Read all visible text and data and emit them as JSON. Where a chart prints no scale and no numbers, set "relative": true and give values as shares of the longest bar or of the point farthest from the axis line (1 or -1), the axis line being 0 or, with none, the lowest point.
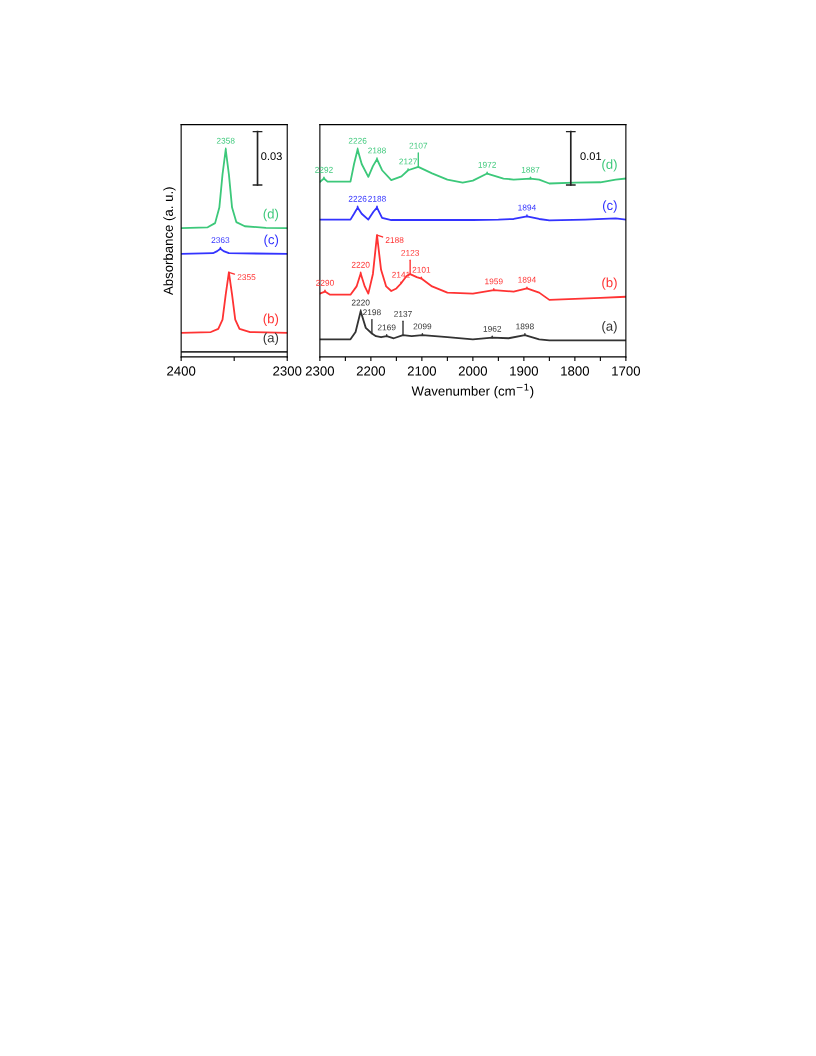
{
  "chart_data": [
    {
      "type": "line",
      "relative": true,
      "ylabel": "Absorbance (a. u.)",
      "xlim": [
        2400,
        2300
      ],
      "xticks": [
        2400,
        {
          "value": 2350,
          "label": null
        },
        2300
      ],
      "legend": false,
      "grid": false,
      "marker": "none",
      "line_style": "solid",
      "annotations": [
        {
          "text": "2358",
          "x": 2358,
          "y": 1.0
        },
        {
          "text": "2363",
          "x": 2363,
          "y": 0.521
        },
        {
          "text": "2355",
          "x": 2355,
          "y": 0.408
        },
        "0.03"
      ],
      "series": [
        {
          "name": "(a)",
          "color": "#333333",
          "x": [
            2400,
            2300
          ],
          "values": [
            0.024,
            0.024
          ]
        },
        {
          "name": "(b)",
          "color": "#ff3333",
          "x": [
            2400,
            2372,
            2365,
            2361,
            2358,
            2355,
            2352,
            2349,
            2345,
            2335,
            2300
          ],
          "values": [
            0.116,
            0.12,
            0.135,
            0.18,
            0.3,
            0.408,
            0.3,
            0.18,
            0.135,
            0.12,
            0.116
          ]
        },
        {
          "name": "(c)",
          "color": "#3333ff",
          "x": [
            2400,
            2370,
            2366,
            2363,
            2360,
            2355,
            2300
          ],
          "values": [
            0.497,
            0.5,
            0.51,
            0.521,
            0.51,
            0.5,
            0.497
          ]
        },
        {
          "name": "(d)",
          "color": "#3cc87a",
          "x": [
            2400,
            2375,
            2368,
            2364,
            2361,
            2358,
            2355,
            2352,
            2348,
            2340,
            2320,
            2300
          ],
          "values": [
            0.621,
            0.625,
            0.645,
            0.72,
            0.88,
            1.0,
            0.88,
            0.72,
            0.65,
            0.63,
            0.622,
            0.621
          ]
        }
      ]
    },
    {
      "type": "line",
      "relative": true,
      "xlabel": "Wavenumber (cm$^{−1}$)",
      "xlim": [
        2300,
        1700
      ],
      "xticks": [
        2300,
        {
          "value": 2250,
          "label": null
        },
        2200,
        {
          "value": 2150,
          "label": null
        },
        2100,
        {
          "value": 2050,
          "label": null
        },
        2000,
        {
          "value": 1950,
          "label": null
        },
        1900,
        {
          "value": 1850,
          "label": null
        },
        1800,
        {
          "value": 1750,
          "label": null
        },
        1700
      ],
      "legend": false,
      "grid": false,
      "marker": "none",
      "line_style": "solid",
      "annotations": [
        {
          "text": "2292",
          "x": 2292,
          "y": 0.86
        },
        {
          "text": "2226",
          "x": 2226,
          "y": 1.0
        },
        {
          "text": "2188",
          "x": 2188,
          "y": 0.953
        },
        {
          "text": "2127",
          "x": 2127,
          "y": 0.9
        },
        {
          "text": "2107",
          "x": 2107,
          "y": 0.916
        },
        {
          "text": "1972",
          "x": 1972,
          "y": 0.884
        },
        {
          "text": "1887",
          "x": 1887,
          "y": 0.86
        },
        {
          "text": "2226",
          "x": 2226,
          "y": 0.72
        },
        {
          "text": "2188",
          "x": 2188,
          "y": 0.72
        },
        {
          "text": "1894",
          "x": 1894,
          "y": 0.678
        },
        {
          "text": "2290",
          "x": 2290,
          "y": 0.315
        },
        {
          "text": "2220",
          "x": 2220,
          "y": 0.402
        },
        {
          "text": "2188",
          "x": 2188,
          "y": 0.587
        },
        {
          "text": "2141",
          "x": 2141,
          "y": 0.354
        },
        {
          "text": "2123",
          "x": 2123,
          "y": 0.399
        },
        {
          "text": "2101",
          "x": 2101,
          "y": 0.378
        },
        {
          "text": "1959",
          "x": 1959,
          "y": 0.322
        },
        {
          "text": "1894",
          "x": 1894,
          "y": 0.33
        },
        {
          "text": "2220",
          "x": 2220,
          "y": 0.22
        },
        {
          "text": "2198",
          "x": 2198,
          "y": 0.113
        },
        {
          "text": "2169",
          "x": 2169,
          "y": 0.1
        },
        {
          "text": "2137",
          "x": 2137,
          "y": 0.105
        },
        {
          "text": "2099",
          "x": 2099,
          "y": 0.105
        },
        {
          "text": "1962",
          "x": 1962,
          "y": 0.093
        },
        {
          "text": "1898",
          "x": 1898,
          "y": 0.105
        },
        "0.01"
      ],
      "series": [
        {
          "name": "(a)",
          "color": "#333333",
          "x": [
            2300,
            2240,
            2230,
            2220,
            2210,
            2198,
            2190,
            2180,
            2169,
            2155,
            2137,
            2120,
            2099,
            2050,
            2000,
            1962,
            1930,
            1898,
            1870,
            1850,
            1750,
            1700
          ],
          "values": [
            0.085,
            0.085,
            0.12,
            0.22,
            0.14,
            0.113,
            0.1,
            0.095,
            0.1,
            0.09,
            0.105,
            0.1,
            0.105,
            0.095,
            0.085,
            0.093,
            0.09,
            0.105,
            0.085,
            0.08,
            0.08,
            0.08
          ]
        },
        {
          "name": "(b)",
          "color": "#ff3333",
          "x": [
            2300,
            2290,
            2280,
            2240,
            2228,
            2220,
            2212,
            2205,
            2196,
            2188,
            2180,
            2170,
            2160,
            2150,
            2141,
            2130,
            2123,
            2110,
            2101,
            2080,
            2050,
            2000,
            1959,
            1920,
            1894,
            1870,
            1850,
            1800,
            1750,
            1700
          ],
          "values": [
            0.305,
            0.315,
            0.3,
            0.3,
            0.34,
            0.402,
            0.34,
            0.305,
            0.4,
            0.587,
            0.42,
            0.34,
            0.318,
            0.33,
            0.354,
            0.39,
            0.399,
            0.385,
            0.378,
            0.34,
            0.31,
            0.305,
            0.322,
            0.315,
            0.33,
            0.31,
            0.275,
            0.28,
            0.285,
            0.29
          ]
        },
        {
          "name": "(c)",
          "color": "#3333ff",
          "x": [
            2300,
            2240,
            2233,
            2226,
            2218,
            2205,
            2195,
            2188,
            2178,
            2160,
            2000,
            1950,
            1920,
            1894,
            1870,
            1850,
            1780,
            1720,
            1700
          ],
          "values": [
            0.662,
            0.662,
            0.69,
            0.72,
            0.69,
            0.662,
            0.7,
            0.72,
            0.67,
            0.66,
            0.66,
            0.662,
            0.665,
            0.678,
            0.665,
            0.658,
            0.662,
            0.668,
            0.662
          ]
        },
        {
          "name": "(d)",
          "color": "#3cc87a",
          "x": [
            2300,
            2292,
            2285,
            2240,
            2233,
            2226,
            2218,
            2205,
            2196,
            2188,
            2178,
            2160,
            2140,
            2127,
            2107,
            2080,
            2050,
            2020,
            2000,
            1972,
            1940,
            1920,
            1887,
            1870,
            1850,
            1800,
            1750,
            1720,
            1700
          ],
          "values": [
            0.844,
            0.86,
            0.845,
            0.845,
            0.93,
            1.0,
            0.93,
            0.868,
            0.92,
            0.953,
            0.9,
            0.852,
            0.87,
            0.9,
            0.916,
            0.885,
            0.855,
            0.84,
            0.85,
            0.884,
            0.86,
            0.855,
            0.86,
            0.855,
            0.836,
            0.84,
            0.842,
            0.855,
            0.86
          ]
        }
      ]
    }
  ]
}
